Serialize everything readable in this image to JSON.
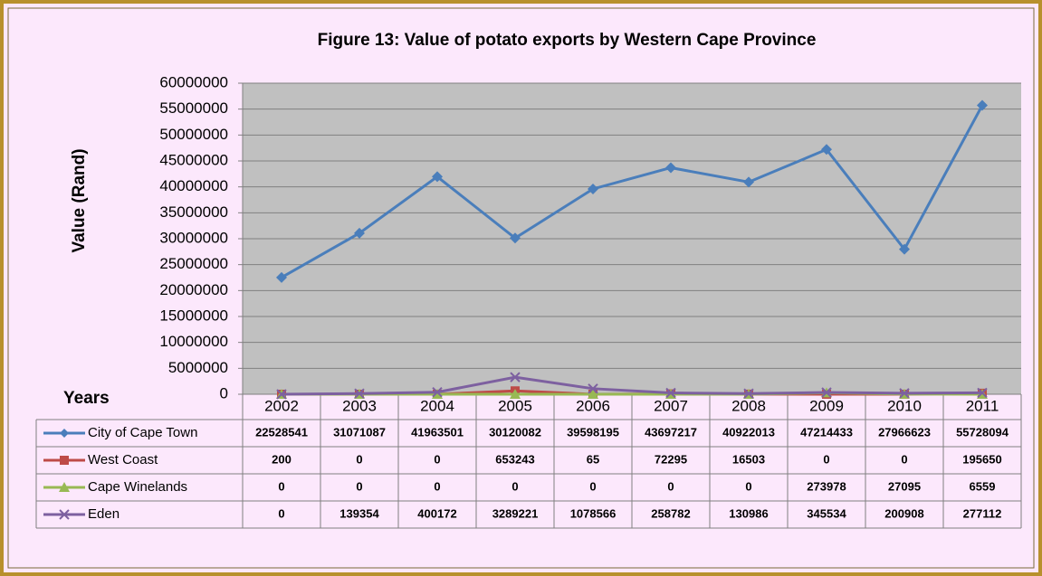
{
  "chart_data": {
    "type": "line",
    "title": "Figure 13: Value of potato exports by Western Cape Province",
    "y_label": "Value (Rand)",
    "x_label": "Years",
    "categories": [
      "2002",
      "2003",
      "2004",
      "2005",
      "2006",
      "2007",
      "2008",
      "2009",
      "2010",
      "2011"
    ],
    "series": [
      {
        "name": "City of Cape Town",
        "color": "#4a7ebb",
        "marker": "diamond",
        "values": [
          22528541,
          31071087,
          41963501,
          30120082,
          39598195,
          43697217,
          40922013,
          47214433,
          27966623,
          55728094
        ]
      },
      {
        "name": "West Coast",
        "color": "#be4b48",
        "marker": "square",
        "values": [
          200,
          0,
          0,
          653243,
          65,
          72295,
          16503,
          0,
          0,
          195650
        ]
      },
      {
        "name": "Cape Winelands",
        "color": "#98b954",
        "marker": "triangle",
        "values": [
          0,
          0,
          0,
          0,
          0,
          0,
          0,
          273978,
          27095,
          6559
        ]
      },
      {
        "name": "Eden",
        "color": "#7d60a0",
        "marker": "x",
        "values": [
          0,
          139354,
          400172,
          3289221,
          1078566,
          258782,
          130986,
          345534,
          200908,
          277112
        ]
      }
    ],
    "ylim": [
      0,
      60000000
    ],
    "yticks": [
      0,
      5000000,
      10000000,
      15000000,
      20000000,
      25000000,
      30000000,
      35000000,
      40000000,
      45000000,
      50000000,
      55000000,
      60000000
    ],
    "grid": true,
    "data_table": true
  }
}
